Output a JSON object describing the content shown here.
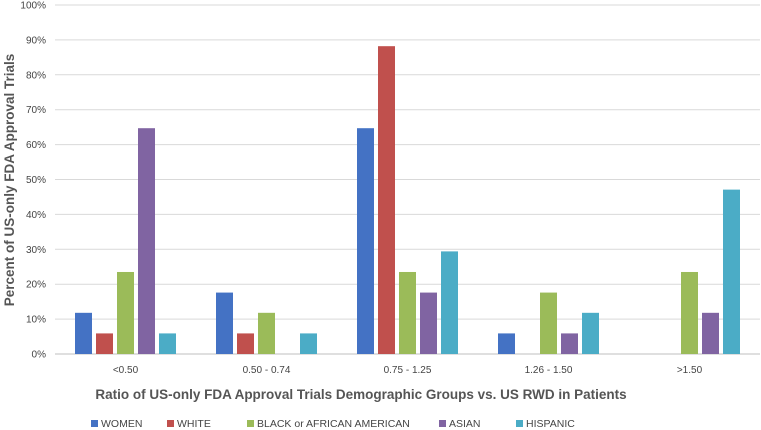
{
  "chart_data": {
    "type": "bar",
    "title": "",
    "xlabel": "Ratio of US-only FDA Approval Trials Demographic Groups vs. US RWD in Patients",
    "ylabel": "Percent of US-only FDA Approval Trials",
    "ylim": [
      0,
      100
    ],
    "yticks": [
      "0%",
      "10%",
      "20%",
      "30%",
      "40%",
      "50%",
      "60%",
      "70%",
      "80%",
      "90%",
      "100%"
    ],
    "grid": true,
    "legend_position": "bottom",
    "categories": [
      "<0.50",
      "0.50 - 0.74",
      "0.75 - 1.25",
      "1.26 - 1.50",
      ">1.50"
    ],
    "series": [
      {
        "name": "WOMEN",
        "color": "#4472C4",
        "values": [
          11.8,
          17.6,
          64.7,
          5.9,
          0
        ]
      },
      {
        "name": "WHITE",
        "color": "#C0504D",
        "values": [
          5.9,
          5.9,
          88.2,
          0,
          0
        ]
      },
      {
        "name": "BLACK or AFRICAN AMERICAN",
        "color": "#9BBB59",
        "values": [
          23.5,
          11.8,
          23.5,
          17.6,
          23.5
        ]
      },
      {
        "name": "ASIAN",
        "color": "#8064A2",
        "values": [
          64.7,
          0,
          17.6,
          5.9,
          11.8
        ]
      },
      {
        "name": "HISPANIC",
        "color": "#4BACC6",
        "values": [
          5.9,
          5.9,
          29.4,
          11.8,
          47.1
        ]
      }
    ]
  }
}
